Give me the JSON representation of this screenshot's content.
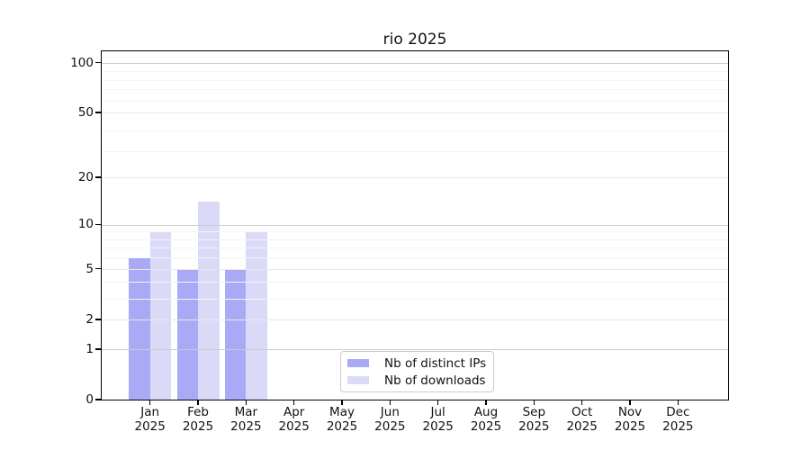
{
  "chart_data": {
    "type": "bar",
    "title": "rio 2025",
    "categories": [
      "Jan",
      "Feb",
      "Mar",
      "Apr",
      "May",
      "Jun",
      "Jul",
      "Aug",
      "Sep",
      "Oct",
      "Nov",
      "Dec"
    ],
    "category_year": "2025",
    "series": [
      {
        "name": "Nb of distinct IPs",
        "color": "#a9a9f5",
        "values": [
          6,
          5,
          5,
          0,
          0,
          0,
          0,
          0,
          0,
          0,
          0,
          0
        ]
      },
      {
        "name": "Nb of downloads",
        "color": "#dadaf8",
        "values": [
          9,
          14,
          9,
          0,
          0,
          0,
          0,
          0,
          0,
          0,
          0,
          0
        ]
      }
    ],
    "y_scale": "log10(1+v)",
    "ylim": [
      0,
      117
    ],
    "yticks": [
      0,
      1,
      2,
      5,
      10,
      20,
      50,
      100
    ],
    "grid": {
      "major": [
        1,
        10,
        100
      ],
      "mid": [
        2,
        5,
        20,
        50
      ],
      "minor": [
        3,
        4,
        6,
        7,
        8,
        9,
        29,
        39,
        59,
        69,
        79,
        89,
        109
      ]
    },
    "legend_position": "lower center",
    "colors": {
      "spine": "#000000",
      "grid_major": "#cccccc",
      "grid_mid": "#e7e7e7",
      "grid_minor": "#f4f4f4"
    }
  }
}
